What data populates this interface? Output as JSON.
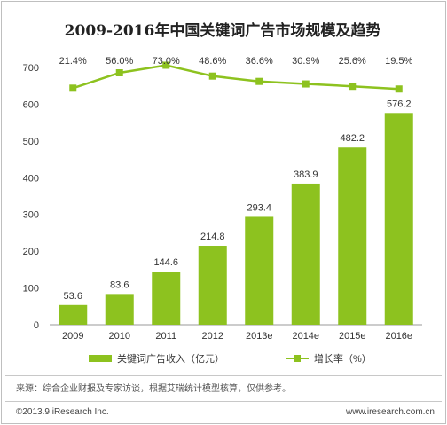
{
  "chart_data": {
    "type": "bar",
    "title": "2009-2016年中国关键词广告市场规模及趋势",
    "categories": [
      "2009",
      "2010",
      "2011",
      "2012",
      "2013e",
      "2014e",
      "2015e",
      "2016e"
    ],
    "series": [
      {
        "name": "关键词广告收入（亿元）",
        "type": "bar",
        "values": [
          53.6,
          83.6,
          144.6,
          214.8,
          293.4,
          383.9,
          482.2,
          576.2
        ],
        "labels": [
          "53.6",
          "83.6",
          "144.6",
          "214.8",
          "293.4",
          "383.9",
          "482.2",
          "576.2"
        ]
      },
      {
        "name": "增长率（%）",
        "type": "line",
        "values": [
          21.4,
          56.0,
          73.0,
          48.6,
          36.6,
          30.9,
          25.6,
          19.5
        ],
        "labels": [
          "21.4%",
          "56.0%",
          "73.0%",
          "48.6%",
          "36.6%",
          "30.9%",
          "25.6%",
          "19.5%"
        ]
      }
    ],
    "ylim": [
      0,
      700
    ],
    "yticks": [
      "0",
      "100",
      "200",
      "300",
      "400",
      "500",
      "600",
      "700"
    ],
    "grid": false,
    "legend": "bottom",
    "color": "#8dc21f"
  },
  "footer": {
    "source": "来源：综合企业财报及专家访谈，根据艾瑞统计模型核算，仅供参考。",
    "copyright": "©2013.9 iResearch Inc.",
    "website": "www.iresearch.com.cn"
  }
}
